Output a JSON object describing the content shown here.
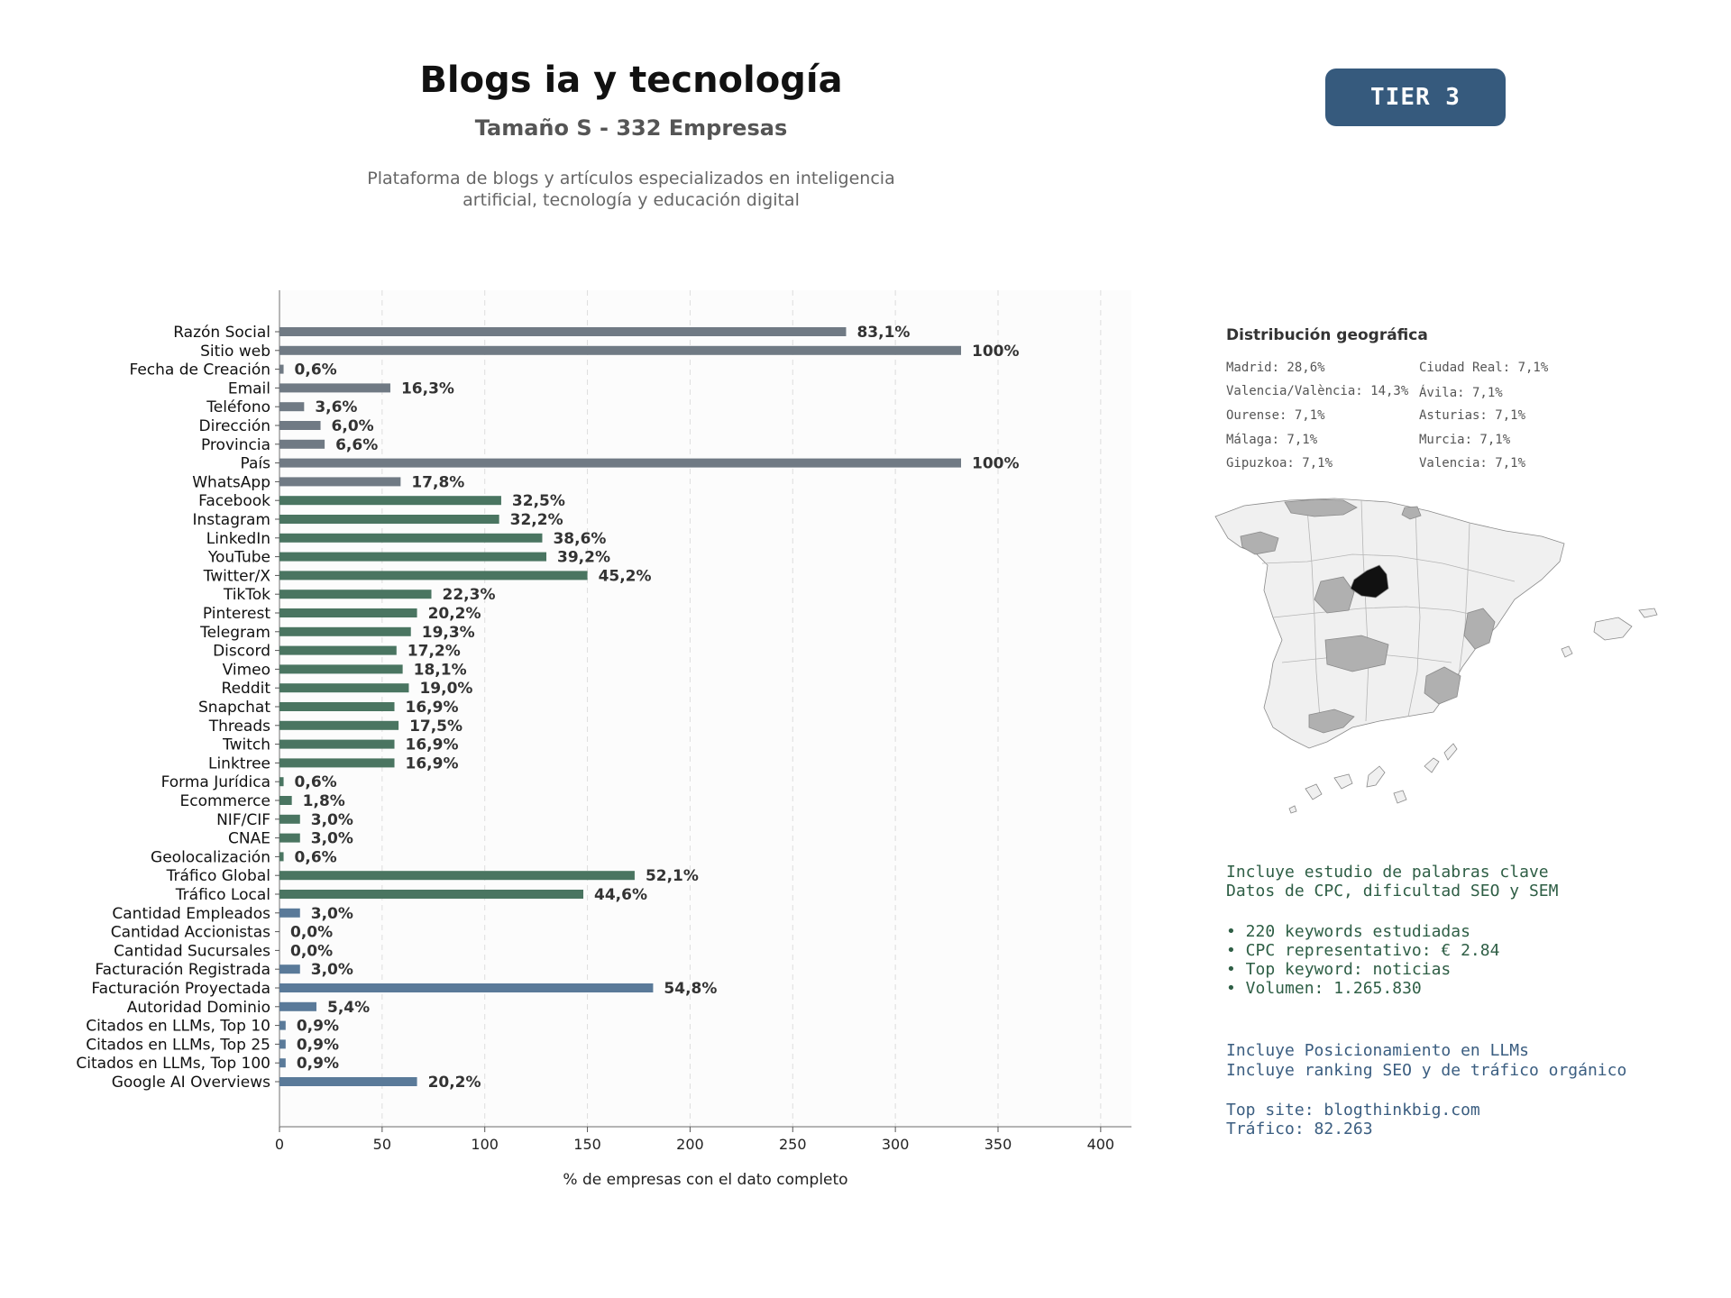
{
  "header": {
    "title": "Blogs ia y tecnología",
    "subtitle": "Tamaño S - 332 Empresas",
    "description_line1": "Plataforma de blogs y artículos especializados en inteligencia",
    "description_line2": "artificial, tecnología y educación digital",
    "tier": "TIER 3"
  },
  "chart_data": {
    "type": "bar",
    "orientation": "horizontal",
    "xlabel": "% de empresas con el dato completo",
    "xlim": [
      0,
      415
    ],
    "xticks": [
      0,
      50,
      100,
      150,
      200,
      250,
      300,
      350,
      400
    ],
    "grid": "vertical dashed",
    "categories": [
      "Razón Social",
      "Sitio web",
      "Fecha de Creación",
      "Email",
      "Teléfono",
      "Dirección",
      "Provincia",
      "País",
      "WhatsApp",
      "Facebook",
      "Instagram",
      "LinkedIn",
      "YouTube",
      "Twitter/X",
      "TikTok",
      "Pinterest",
      "Telegram",
      "Discord",
      "Vimeo",
      "Reddit",
      "Snapchat",
      "Threads",
      "Twitch",
      "Linktree",
      "Forma Jurídica",
      "Ecommerce",
      "NIF/CIF",
      "CNAE",
      "Geolocalización",
      "Tráfico Global",
      "Tráfico Local",
      "Cantidad Empleados",
      "Cantidad Accionistas",
      "Cantidad Sucursales",
      "Facturación Registrada",
      "Facturación Proyectada",
      "Autoridad Dominio",
      "Citados en LLMs, Top 10",
      "Citados en LLMs, Top 25",
      "Citados en LLMs, Top 100",
      "Google AI Overviews"
    ],
    "values": [
      276,
      332,
      2,
      54,
      12,
      20,
      22,
      332,
      59,
      108,
      107,
      128,
      130,
      150,
      74,
      67,
      64,
      57,
      60,
      63,
      56,
      58,
      56,
      56,
      2,
      6,
      10,
      10,
      2,
      173,
      148,
      10,
      0,
      0,
      10,
      182,
      18,
      3,
      3,
      3,
      67
    ],
    "data_labels": [
      "83,1%",
      "100%",
      "0,6%",
      "16,3%",
      "3,6%",
      "6,0%",
      "6,6%",
      "100%",
      "17,8%",
      "32,5%",
      "32,2%",
      "38,6%",
      "39,2%",
      "45,2%",
      "22,3%",
      "20,2%",
      "19,3%",
      "17,2%",
      "18,1%",
      "19,0%",
      "16,9%",
      "17,5%",
      "16,9%",
      "16,9%",
      "0,6%",
      "1,8%",
      "3,0%",
      "3,0%",
      "0,6%",
      "52,1%",
      "44,6%",
      "3,0%",
      "0,0%",
      "0,0%",
      "3,0%",
      "54,8%",
      "5,4%",
      "0,9%",
      "0,9%",
      "0,9%",
      "20,2%"
    ],
    "groups": [
      "basic",
      "basic",
      "basic",
      "basic",
      "basic",
      "basic",
      "basic",
      "basic",
      "basic",
      "social",
      "social",
      "social",
      "social",
      "social",
      "social",
      "social",
      "social",
      "social",
      "social",
      "social",
      "social",
      "social",
      "social",
      "social",
      "social",
      "social",
      "social",
      "social",
      "social",
      "social",
      "social",
      "finance",
      "finance",
      "finance",
      "finance",
      "finance",
      "finance",
      "finance",
      "finance",
      "finance",
      "finance"
    ],
    "colors": {
      "basic": "#707a84",
      "social": "#4a7561",
      "finance": "#5a7a99"
    }
  },
  "geo": {
    "title": "Distribución geográfica",
    "items": [
      "Madrid: 28,6%",
      "Ciudad Real: 7,1%",
      "Valencia/València: 14,3%",
      "Ávila: 7,1%",
      "Ourense: 7,1%",
      "Asturias: 7,1%",
      "Málaga: 7,1%",
      "Murcia: 7,1%",
      "Gipuzkoa: 7,1%",
      "Valencia: 7,1%"
    ],
    "colors": {
      "highlight": "#111111",
      "secondary": "#b0b0b0",
      "base": "#f0f0f0"
    }
  },
  "keywords": {
    "line1": "Incluye estudio de palabras clave",
    "line2": "Datos de CPC, dificultad SEO y SEM",
    "bullet1": "• 220 keywords estudiadas",
    "bullet2": "• CPC representativo: € 2.84",
    "bullet3": "• Top keyword: noticias",
    "bullet4": "• Volumen: 1.265.830"
  },
  "llm": {
    "line1": "Incluye Posicionamiento en LLMs",
    "line2": "Incluye ranking SEO y de tráfico orgánico",
    "site": "Top site: blogthinkbig.com",
    "traffic": "Tráfico: 82.263"
  }
}
